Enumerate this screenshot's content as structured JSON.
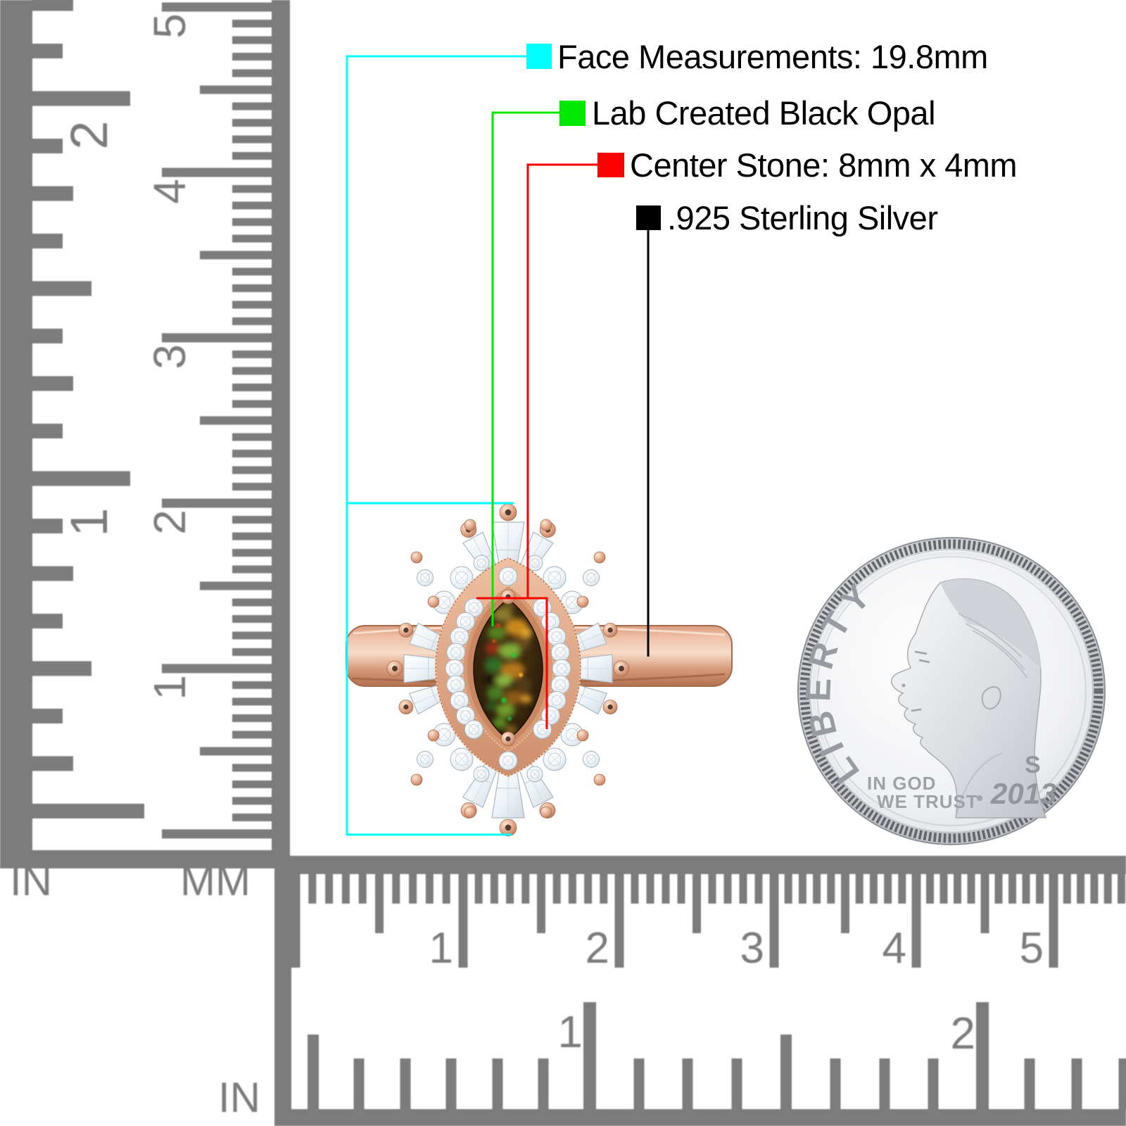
{
  "annotations": {
    "items": [
      {
        "label": "Face Measurements: 19.8mm",
        "color": "#00ffff"
      },
      {
        "label": "Lab Created Black Opal",
        "color": "#00e700"
      },
      {
        "label": "Center Stone: 8mm x 4mm",
        "color": "#fe0000"
      },
      {
        "label": ".925 Sterling Silver",
        "color": "#000000"
      }
    ]
  },
  "rulers": {
    "color": "#7c7c7c",
    "left_inch": {
      "unit": "IN",
      "numbers": [
        "2",
        "1"
      ]
    },
    "left_mm": {
      "unit": "MM",
      "numbers": [
        "5",
        "4",
        "3",
        "2",
        "1"
      ]
    },
    "bottom_mm": {
      "numbers": [
        "1",
        "2",
        "3",
        "4",
        "5"
      ]
    },
    "bottom_inch": {
      "unit": "IN",
      "numbers": [
        "1",
        "2"
      ]
    }
  },
  "coin": {
    "legend": "LIBERTY",
    "motto_line1": "IN GOD",
    "motto_line2": "WE TRUST",
    "mint_mark": "S",
    "year": "2013"
  },
  "ring": {
    "colors": {
      "rose_gold": "#dfa98c",
      "rose_gold_light": "#f6d7c3",
      "rose_gold_dark": "#b4714f",
      "cz_white": "#f4f8fb",
      "opal_base": "#2c1d0a",
      "opal_green": "#6f9c2c",
      "opal_orange": "#d3891f",
      "opal_red": "#9c2e17"
    }
  }
}
